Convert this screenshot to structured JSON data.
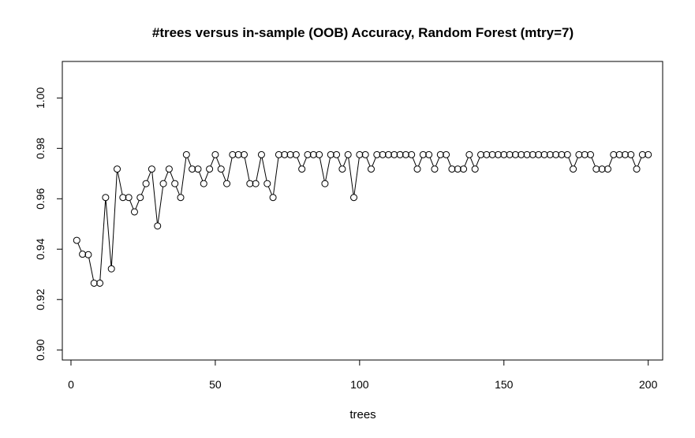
{
  "chart_data": {
    "type": "line",
    "title": "#trees versus in-sample  (OOB) Accuracy, Random Forest (mtry=7)",
    "xlabel": "trees",
    "ylabel": "",
    "xlim": [
      -3,
      205
    ],
    "ylim": [
      0.896,
      1.0145
    ],
    "x_ticks": [
      0,
      50,
      100,
      150,
      200
    ],
    "y_ticks": [
      0.9,
      0.92,
      0.94,
      0.96,
      0.98,
      1.0
    ],
    "x_tick_labels": [
      "0",
      "50",
      "100",
      "150",
      "200"
    ],
    "y_tick_labels": [
      "0.90",
      "0.92",
      "0.94",
      "0.96",
      "0.98",
      "1.00"
    ],
    "grid": false,
    "markers": "open-circle",
    "series": [
      {
        "x": [
          2,
          4,
          6,
          8,
          10,
          12,
          14,
          16,
          18,
          20,
          22,
          24,
          26,
          28,
          30,
          32,
          34,
          36,
          38,
          40,
          42,
          44,
          46,
          48,
          50,
          52,
          54,
          56,
          58,
          60,
          62,
          64,
          66,
          68,
          70,
          72,
          74,
          76,
          78,
          80,
          82,
          84,
          86,
          88,
          90,
          92,
          94,
          96,
          98,
          100,
          102,
          104,
          106,
          108,
          110,
          112,
          114,
          116,
          118,
          120,
          122,
          124,
          126,
          128,
          130,
          132,
          134,
          136,
          138,
          140,
          142,
          144,
          146,
          148,
          150,
          152,
          154,
          156,
          158,
          160,
          162,
          164,
          166,
          168,
          170,
          172,
          174,
          176,
          178,
          180,
          182,
          184,
          186,
          188,
          190,
          192,
          194,
          196,
          198,
          200
        ],
        "values": [
          0.9435,
          0.938,
          0.9378,
          0.9265,
          0.9265,
          0.9605,
          0.9322,
          0.9718,
          0.9605,
          0.9605,
          0.9548,
          0.9605,
          0.966,
          0.9718,
          0.9492,
          0.966,
          0.9718,
          0.966,
          0.9605,
          0.9775,
          0.9718,
          0.9718,
          0.966,
          0.9718,
          0.9775,
          0.9718,
          0.966,
          0.9775,
          0.9775,
          0.9775,
          0.966,
          0.966,
          0.9775,
          0.966,
          0.9605,
          0.9775,
          0.9775,
          0.9775,
          0.9775,
          0.9718,
          0.9775,
          0.9775,
          0.9775,
          0.966,
          0.9775,
          0.9775,
          0.9718,
          0.9775,
          0.9605,
          0.9775,
          0.9775,
          0.9718,
          0.9775,
          0.9775,
          0.9775,
          0.9775,
          0.9775,
          0.9775,
          0.9775,
          0.9718,
          0.9775,
          0.9775,
          0.9718,
          0.9775,
          0.9775,
          0.9718,
          0.9718,
          0.9718,
          0.9775,
          0.9718,
          0.9775,
          0.9775,
          0.9775,
          0.9775,
          0.9775,
          0.9775,
          0.9775,
          0.9775,
          0.9775,
          0.9775,
          0.9775,
          0.9775,
          0.9775,
          0.9775,
          0.9775,
          0.9775,
          0.9718,
          0.9775,
          0.9775,
          0.9775,
          0.9718,
          0.9718,
          0.9718,
          0.9775,
          0.9775,
          0.9775,
          0.9775,
          0.9718,
          0.9775,
          0.9775
        ]
      }
    ]
  }
}
